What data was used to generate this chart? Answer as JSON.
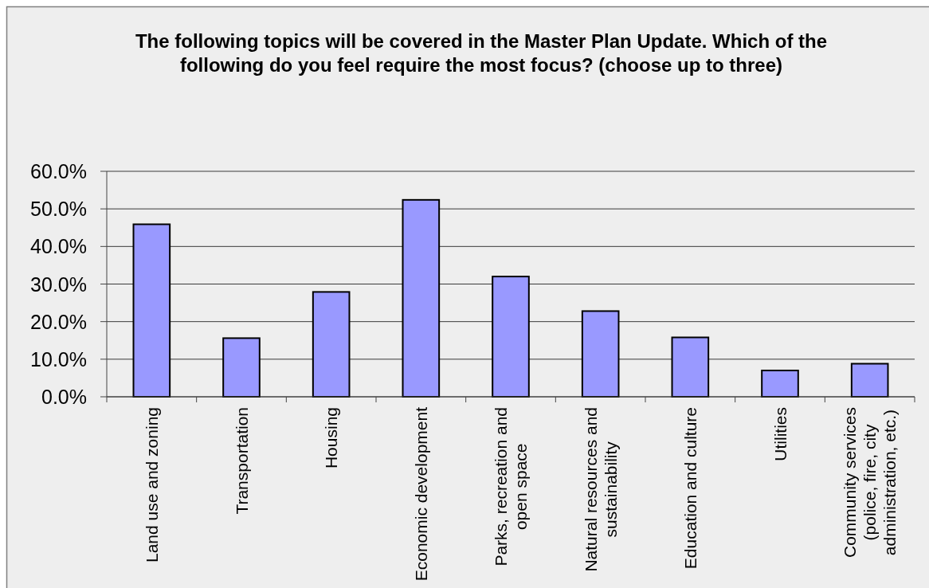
{
  "chart_data": {
    "type": "bar",
    "title": "The following topics will be covered in the Master Plan Update. Which of the following do you feel require the most focus? (choose up to three)",
    "categories": [
      "Land use and zoning",
      "Transportation",
      "Housing",
      "Economic development",
      "Parks, recreation and open space",
      "Natural resources and sustainability",
      "Education and culture",
      "Utilities",
      "Community services (police, fire, city administration, etc.)"
    ],
    "values": [
      45.9,
      15.6,
      27.9,
      52.4,
      32.0,
      22.8,
      15.8,
      7.0,
      8.8
    ],
    "color": "#9999ff",
    "ylim": [
      0,
      60
    ],
    "yticks": [
      {
        "value": 0,
        "label": "0.0%"
      },
      {
        "value": 10,
        "label": "10.0%"
      },
      {
        "value": 20,
        "label": "20.0%"
      },
      {
        "value": 30,
        "label": "30.0%"
      },
      {
        "value": 40,
        "label": "40.0%"
      },
      {
        "value": 50,
        "label": "50.0%"
      },
      {
        "value": 60,
        "label": "60.0%"
      }
    ],
    "grid": "y"
  }
}
